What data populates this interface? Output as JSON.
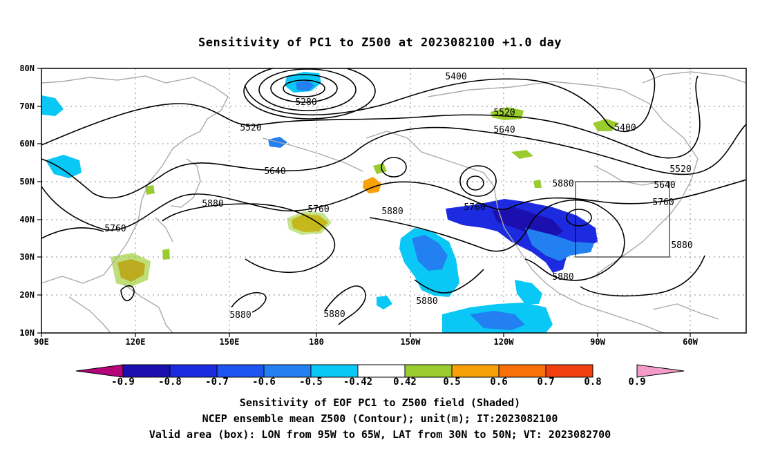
{
  "title": "Sensitivity of PC1 to Z500 at 2023082100 +1.0 day",
  "lat_labels": [
    "80N",
    "70N",
    "60N",
    "50N",
    "40N",
    "30N",
    "20N",
    "10N"
  ],
  "lon_labels": [
    "90E",
    "120E",
    "150E",
    "180",
    "150W",
    "120W",
    "90W",
    "60W"
  ],
  "colorbar": {
    "ticks": [
      "-0.9",
      "-0.8",
      "-0.7",
      "-0.6",
      "-0.5",
      "-0.42",
      "0.42",
      "0.5",
      "0.6",
      "0.7",
      "0.8",
      "0.9"
    ],
    "colors": [
      "#b5057b",
      "#1b0fb0",
      "#1d2be0",
      "#1e55f0",
      "#2280f0",
      "#0ac8f5",
      "#ffffff",
      "#9bcc2f",
      "#f8a008",
      "#f87008",
      "#f04010",
      "#f00000",
      "#f49cc8"
    ]
  },
  "contour_labels": [
    "5280",
    "5400",
    "5400",
    "5520",
    "5520",
    "5520",
    "5640",
    "5640",
    "5640",
    "5760",
    "5760",
    "5760",
    "5760",
    "5880",
    "5880",
    "5880",
    "5880",
    "5880",
    "5880",
    "5880"
  ],
  "footer": {
    "line1": "Sensitivity of EOF PC1 to Z500 field (Shaded)",
    "line2": "NCEP ensemble mean Z500 (Contour); unit(m); IT:2023082100",
    "line3": "Valid area (box): LON from 95W to 65W, LAT from 30N to 50N; VT: 2023082700"
  }
}
